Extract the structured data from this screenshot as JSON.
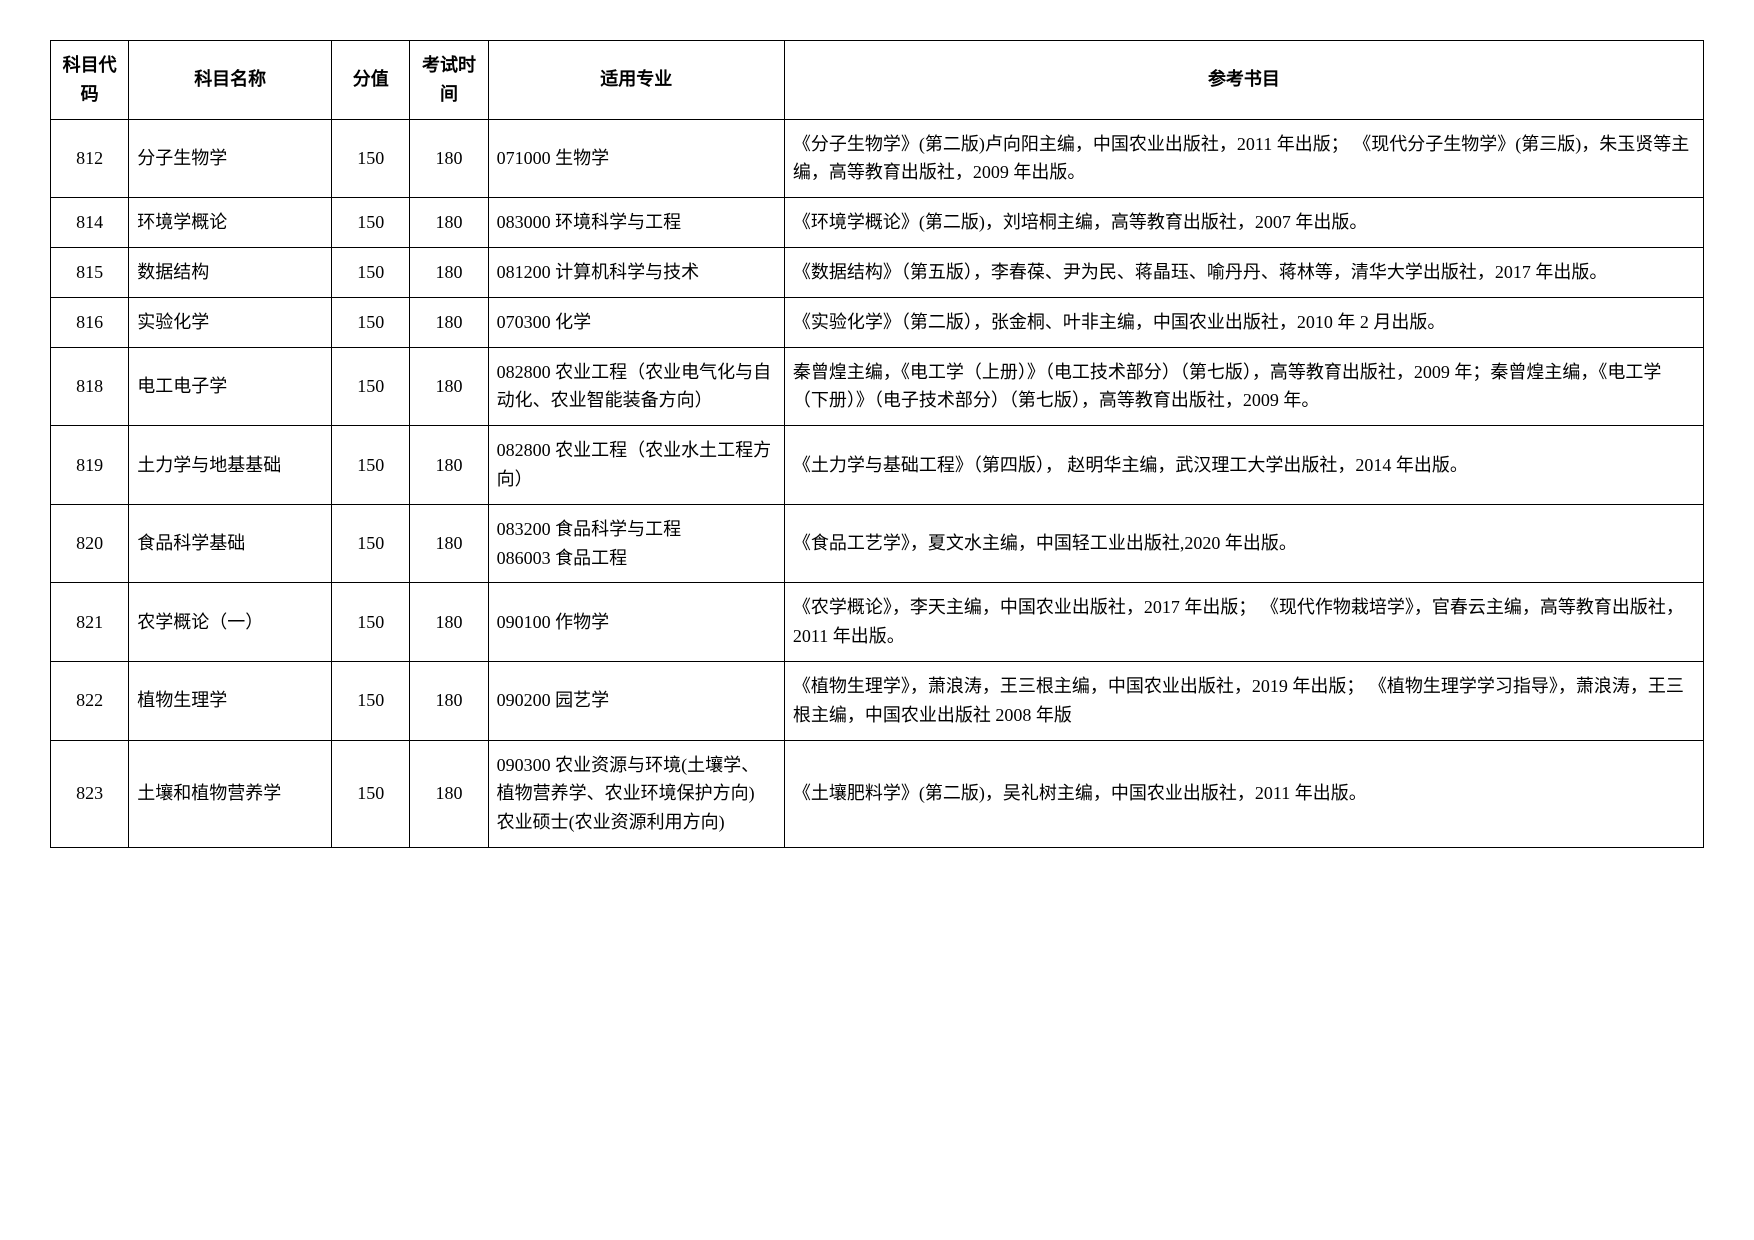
{
  "headers": {
    "code": "科目代码",
    "name": "科目名称",
    "score": "分值",
    "time": "考试时间",
    "major": "适用专业",
    "ref": "参考书目"
  },
  "rows": [
    {
      "code": "812",
      "name": "分子生物学",
      "score": "150",
      "time": "180",
      "major": "071000 生物学",
      "ref": "《分子生物学》(第二版)卢向阳主编，中国农业出版社，2011 年出版； 《现代分子生物学》(第三版)，朱玉贤等主编，高等教育出版社，2009 年出版。"
    },
    {
      "code": "814",
      "name": "环境学概论",
      "score": "150",
      "time": "180",
      "major": "083000 环境科学与工程",
      "ref": "《环境学概论》(第二版)，刘培桐主编，高等教育出版社，2007 年出版。"
    },
    {
      "code": "815",
      "name": "数据结构",
      "score": "150",
      "time": "180",
      "major": "081200 计算机科学与技术",
      "ref": "《数据结构》（第五版），李春葆、尹为民、蒋晶珏、喻丹丹、蒋林等，清华大学出版社，2017 年出版。"
    },
    {
      "code": "816",
      "name": "实验化学",
      "score": "150",
      "time": "180",
      "major": "070300 化学",
      "ref": "《实验化学》（第二版），张金桐、叶非主编，中国农业出版社，2010 年 2 月出版。"
    },
    {
      "code": "818",
      "name": "电工电子学",
      "score": "150",
      "time": "180",
      "major": "082800 农业工程（农业电气化与自动化、农业智能装备方向）",
      "ref": "秦曾煌主编，《电工学（上册）》（电工技术部分）（第七版），高等教育出版社，2009 年；秦曾煌主编，《电工学（下册）》（电子技术部分）（第七版），高等教育出版社，2009 年。"
    },
    {
      "code": "819",
      "name": "土力学与地基基础",
      "score": "150",
      "time": "180",
      "major": "082800 农业工程（农业水土工程方向）",
      "ref": "《土力学与基础工程》（第四版）， 赵明华主编，武汉理工大学出版社，2014 年出版。"
    },
    {
      "code": "820",
      "name": "食品科学基础",
      "score": "150",
      "time": "180",
      "major": "083200 食品科学与工程\n086003 食品工程",
      "ref": "《食品工艺学》，夏文水主编，中国轻工业出版社,2020 年出版。"
    },
    {
      "code": "821",
      "name": "农学概论（一）",
      "score": "150",
      "time": "180",
      "major": "090100 作物学",
      "ref": "《农学概论》，李天主编，中国农业出版社，2017 年出版； 《现代作物栽培学》，官春云主编，高等教育出版社，2011 年出版。"
    },
    {
      "code": "822",
      "name": "植物生理学",
      "score": "150",
      "time": "180",
      "major": "090200 园艺学",
      "ref": "《植物生理学》，萧浪涛，王三根主编，中国农业出版社，2019 年出版； 《植物生理学学习指导》，萧浪涛，王三根主编，中国农业出版社 2008 年版"
    },
    {
      "code": "823",
      "name": "土壤和植物营养学",
      "score": "150",
      "time": "180",
      "major": "090300 农业资源与环境(土壤学、植物营养学、农业环境保护方向)\n农业硕士(农业资源利用方向)",
      "ref": "《土壤肥料学》(第二版)，吴礼树主编，中国农业出版社，2011 年出版。"
    }
  ]
}
